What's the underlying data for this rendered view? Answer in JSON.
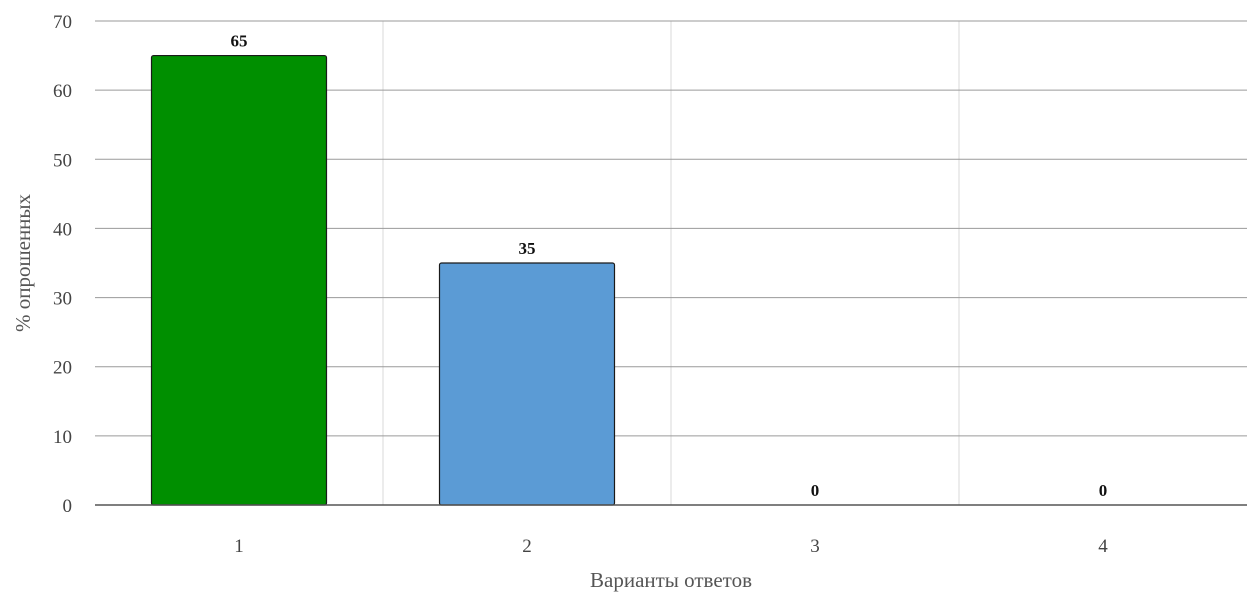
{
  "chart_data": {
    "type": "bar",
    "title": "",
    "categories": [
      "1",
      "2",
      "3",
      "4"
    ],
    "values": [
      65,
      35,
      0,
      0
    ],
    "colors": [
      "#008f00",
      "#5b9bd5",
      "#5b9bd5",
      "#5b9bd5"
    ],
    "xlabel": "Варианты ответов",
    "ylabel": "% опрошенных",
    "ylim": [
      0,
      70
    ],
    "yticks": [
      0,
      10,
      20,
      30,
      40,
      50,
      60,
      70
    ],
    "grid": true,
    "legend": "none"
  }
}
